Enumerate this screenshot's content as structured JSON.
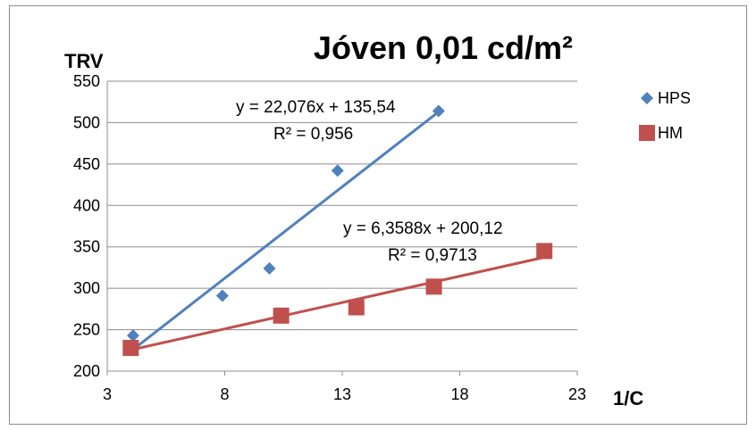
{
  "chart_data": {
    "type": "scatter",
    "title": "Jóven 0,01 cd/m²",
    "xlabel": "1/C",
    "ylabel": "TRV",
    "xlim": [
      3,
      23
    ],
    "ylim": [
      200,
      550
    ],
    "xticks": [
      "3",
      "8",
      "13",
      "18",
      "23"
    ],
    "yticks": [
      "200",
      "250",
      "300",
      "350",
      "400",
      "450",
      "500",
      "550"
    ],
    "grid": "horizontal",
    "legend_position": "right",
    "series": [
      {
        "name": "HPS",
        "marker": "diamond",
        "color": "#4F81BD",
        "trend_color": "#4F81BD",
        "x": [
          4.1,
          7.9,
          9.9,
          12.8,
          17.1
        ],
        "y": [
          243,
          291,
          324,
          442,
          514
        ],
        "trendline": {
          "slope": 22.076,
          "intercept": 135.54,
          "equation": "y = 22,076x + 135,54",
          "r2": "R² = 0,956"
        }
      },
      {
        "name": "HM",
        "marker": "square",
        "color": "#C0504D",
        "trend_color": "#C0504D",
        "x": [
          4.0,
          10.4,
          13.6,
          16.9,
          21.6
        ],
        "y": [
          228,
          267,
          277,
          302,
          345
        ],
        "trendline": {
          "slope": 6.3588,
          "intercept": 200.12,
          "equation": "y = 6,3588x + 200,12",
          "r2": "R² = 0,9713"
        }
      }
    ]
  }
}
